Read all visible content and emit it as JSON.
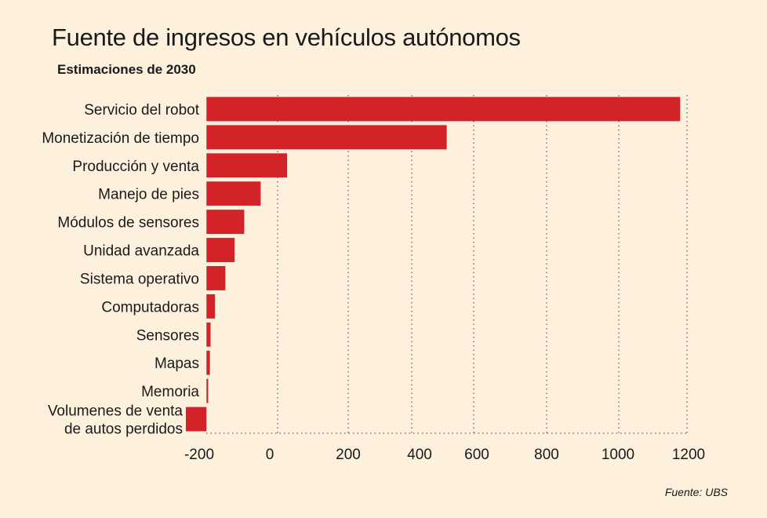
{
  "title": "Fuente de ingresos en vehículos autónomos",
  "subtitle": "Estimaciones de 2030",
  "source": "Fuente: UBS",
  "chart_data": {
    "type": "bar",
    "orientation": "horizontal",
    "title": "Fuente de ingresos en vehículos autónomos",
    "subtitle": "Estimaciones de 2030",
    "categories": [
      [
        "Servicio del robot"
      ],
      [
        "Monetización de tiempo"
      ],
      [
        "Producción y venta"
      ],
      [
        "Manejo de pies"
      ],
      [
        "Módulos de sensores"
      ],
      [
        "Unidad avanzada"
      ],
      [
        "Sistema operativo"
      ],
      [
        "Computadoras"
      ],
      [
        "Sensores"
      ],
      [
        "Mapas"
      ],
      [
        "Memoria"
      ],
      [
        "Volumenes de venta",
        "de autos perdidos"
      ]
    ],
    "values": [
      1380,
      700,
      235,
      158,
      110,
      82,
      55,
      25,
      12,
      10,
      5,
      -60
    ],
    "ticks": [
      {
        "label": "-200",
        "value": -200
      },
      {
        "label": "0",
        "value": 0
      },
      {
        "label": "200",
        "value": 200
      },
      {
        "label": "400",
        "value": 400
      },
      {
        "label": "600",
        "value": 600
      },
      {
        "label": "800",
        "value": 800
      },
      {
        "label": "1000",
        "value": 1000
      },
      {
        "label": "1200",
        "value": 1200
      }
    ],
    "xlim": [
      -60,
      1400
    ],
    "grid": true,
    "bar_color": "#d42229",
    "grid_color": "#777777"
  }
}
